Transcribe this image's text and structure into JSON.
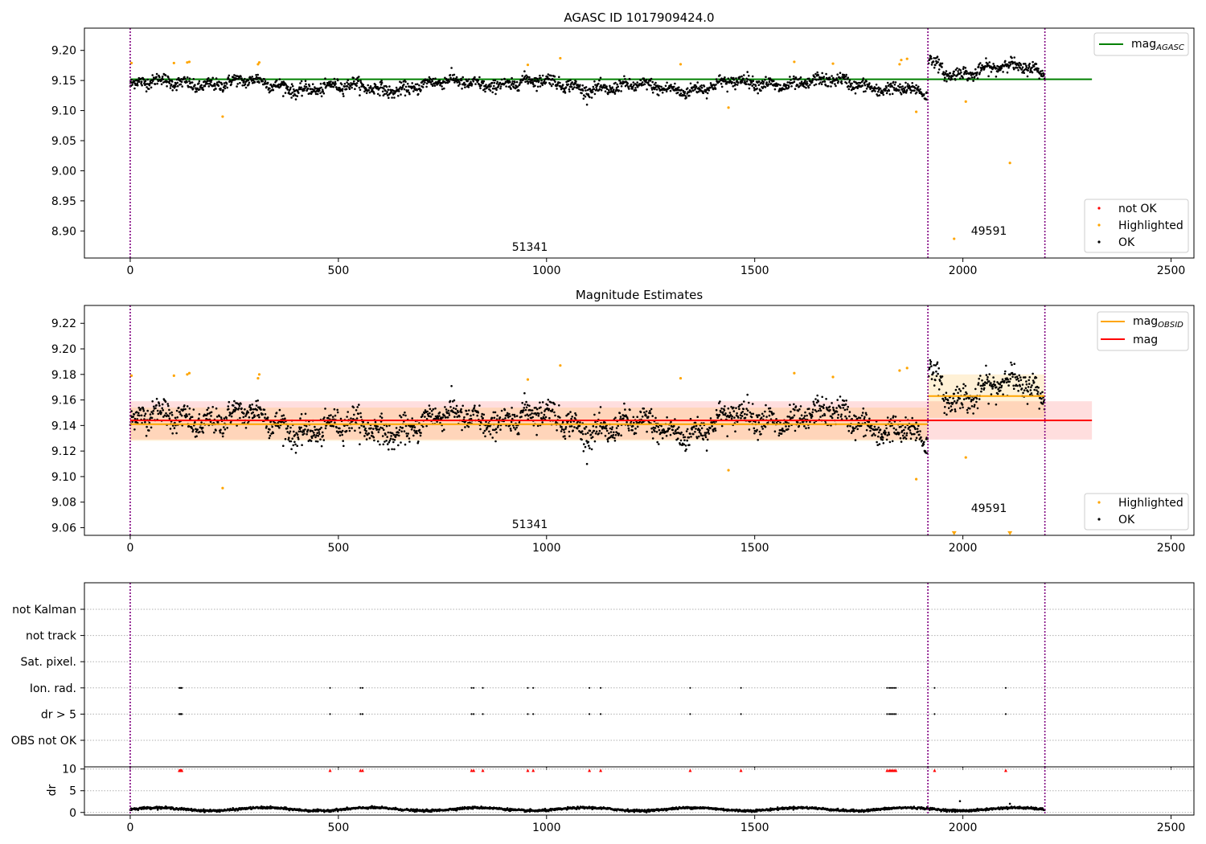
{
  "chart_data": [
    {
      "type": "scatter",
      "title": "AGASC ID 1017909424.0",
      "xlabel": "",
      "ylabel": "",
      "xlim": [
        -110,
        2555
      ],
      "ylim": [
        8.855,
        9.237
      ],
      "xticks": [
        0,
        500,
        1000,
        1500,
        2000,
        2500
      ],
      "yticks": [
        8.9,
        8.95,
        9.0,
        9.05,
        9.1,
        9.15,
        9.2
      ],
      "ytick_labels": [
        "8.90",
        "8.95",
        "9.00",
        "9.05",
        "9.10",
        "9.15",
        "9.20"
      ],
      "grid": false,
      "legend_upper": {
        "position": "upper right",
        "entries": [
          {
            "label": "mag",
            "subscript": "AGASC",
            "color": "#008000",
            "kind": "line"
          }
        ]
      },
      "legend_lower": {
        "position": "lower right",
        "entries": [
          {
            "label": "not OK",
            "color": "#ff0000",
            "kind": "marker"
          },
          {
            "label": "Highlighted",
            "color": "#ffa500",
            "kind": "marker"
          },
          {
            "label": "OK",
            "color": "#000000",
            "kind": "marker"
          }
        ]
      },
      "obsid_labels": [
        {
          "text": "51341",
          "x": 956,
          "y": 8.874
        },
        {
          "text": "49591",
          "x": 2055,
          "y": 8.895
        }
      ],
      "vlines": [
        0,
        1916,
        2197
      ],
      "mag_agasc": {
        "value": 9.152,
        "x": [
          0,
          2310
        ]
      },
      "segments": [
        {
          "x0": 0,
          "x1": 1916,
          "center": 9.142,
          "amp": 0.011,
          "noise": 0.0095,
          "rise_end": 0.017
        },
        {
          "x0": 1918,
          "x1": 2197,
          "center": 9.163,
          "amp": 0.013,
          "noise": 0.0095,
          "rise_end": 0.0
        }
      ],
      "highlighted_points": [
        {
          "x": 3,
          "y": 9.179
        },
        {
          "x": 105,
          "y": 9.179
        },
        {
          "x": 137,
          "y": 9.18
        },
        {
          "x": 142,
          "y": 9.181
        },
        {
          "x": 222,
          "y": 9.09
        },
        {
          "x": 307,
          "y": 9.177
        },
        {
          "x": 310,
          "y": 9.18
        },
        {
          "x": 955,
          "y": 9.176
        },
        {
          "x": 1033,
          "y": 9.187
        },
        {
          "x": 1322,
          "y": 9.177
        },
        {
          "x": 1437,
          "y": 9.105
        },
        {
          "x": 1595,
          "y": 9.181
        },
        {
          "x": 1688,
          "y": 9.178
        },
        {
          "x": 1848,
          "y": 9.177
        },
        {
          "x": 1852,
          "y": 9.184
        },
        {
          "x": 1866,
          "y": 9.186
        },
        {
          "x": 1888,
          "y": 9.098
        },
        {
          "x": 1979,
          "y": 8.887
        },
        {
          "x": 2007,
          "y": 9.115
        },
        {
          "x": 2113,
          "y": 9.013
        }
      ],
      "not_ok_points": []
    },
    {
      "type": "scatter",
      "title": "Magnitude Estimates",
      "xlabel": "",
      "ylabel": "",
      "xlim": [
        -110,
        2555
      ],
      "ylim": [
        9.054,
        9.234
      ],
      "xticks": [
        0,
        500,
        1000,
        1500,
        2000,
        2500
      ],
      "yticks": [
        9.06,
        9.08,
        9.1,
        9.12,
        9.14,
        9.16,
        9.18,
        9.2,
        9.22
      ],
      "ytick_labels": [
        "9.06",
        "9.08",
        "9.10",
        "9.12",
        "9.14",
        "9.16",
        "9.18",
        "9.20",
        "9.22"
      ],
      "grid": false,
      "legend_upper": {
        "position": "upper right",
        "entries": [
          {
            "label": "mag",
            "subscript": "OBSID",
            "color": "#ffa500",
            "kind": "line"
          },
          {
            "label": "mag",
            "subscript": "",
            "color": "#ff0000",
            "kind": "line"
          }
        ]
      },
      "legend_lower": {
        "position": "lower right",
        "entries": [
          {
            "label": "Highlighted",
            "color": "#ffa500",
            "kind": "marker"
          },
          {
            "label": "OK",
            "color": "#000000",
            "kind": "marker"
          }
        ]
      },
      "obsid_labels": [
        {
          "text": "51341",
          "x": 956,
          "y": 9.0605
        },
        {
          "text": "49591",
          "x": 2055,
          "y": 9.0725
        }
      ],
      "vlines": [
        0,
        1916,
        2197
      ],
      "mag_line": {
        "value": 9.144,
        "x": [
          0,
          2310
        ],
        "band": [
          9.129,
          9.159
        ],
        "color": "#ff0000"
      },
      "mag_obsid": [
        {
          "x": [
            0,
            1916
          ],
          "value": 9.141,
          "band": [
            9.128,
            9.154
          ]
        },
        {
          "x": [
            1916,
            2197
          ],
          "value": 9.163,
          "band": [
            9.146,
            9.18
          ]
        }
      ],
      "segments": [
        {
          "x0": 0,
          "x1": 1916,
          "center": 9.142,
          "amp": 0.011,
          "noise": 0.0095,
          "rise_end": 0.017
        },
        {
          "x0": 1918,
          "x1": 2197,
          "center": 9.163,
          "amp": 0.013,
          "noise": 0.0095,
          "rise_end": 0.0
        }
      ],
      "highlighted_points": [
        {
          "x": 3,
          "y": 9.179
        },
        {
          "x": 105,
          "y": 9.179
        },
        {
          "x": 137,
          "y": 9.18
        },
        {
          "x": 142,
          "y": 9.181
        },
        {
          "x": 222,
          "y": 9.091
        },
        {
          "x": 307,
          "y": 9.177
        },
        {
          "x": 310,
          "y": 9.18
        },
        {
          "x": 955,
          "y": 9.176
        },
        {
          "x": 1033,
          "y": 9.187
        },
        {
          "x": 1322,
          "y": 9.177
        },
        {
          "x": 1437,
          "y": 9.105
        },
        {
          "x": 1595,
          "y": 9.181
        },
        {
          "x": 1688,
          "y": 9.178
        },
        {
          "x": 1848,
          "y": 9.183
        },
        {
          "x": 1866,
          "y": 9.185
        },
        {
          "x": 1888,
          "y": 9.098
        },
        {
          "x": 2007,
          "y": 9.115
        }
      ],
      "off_scale_markers": [
        {
          "x": 1979,
          "y": 9.056
        },
        {
          "x": 2113,
          "y": 9.056
        }
      ]
    },
    {
      "type": "scatter",
      "title": "",
      "xlabel": "",
      "ylabel": "",
      "xlim": [
        -110,
        2555
      ],
      "xticks": [
        0,
        500,
        1000,
        1500,
        2000,
        2500
      ],
      "categories": [
        "not Kalman",
        "not track",
        "Sat. pixel.",
        "Ion. rad.",
        "dr > 5",
        "OBS not OK"
      ],
      "grid": true,
      "vlines": [
        0,
        1916,
        2197
      ],
      "flags": {
        "Ion. rad.": [
          118,
          120,
          122,
          124,
          480,
          553,
          558,
          820,
          825,
          847,
          955,
          968,
          1103,
          1130,
          1345,
          1467,
          1818,
          1823,
          1827,
          1831,
          1835,
          1839,
          1932,
          2103
        ],
        "dr > 5": [
          118,
          120,
          122,
          124,
          480,
          553,
          558,
          820,
          825,
          847,
          955,
          968,
          1103,
          1130,
          1345,
          1467,
          1818,
          1823,
          1827,
          1831,
          1835,
          1839,
          1932,
          2103
        ]
      }
    },
    {
      "type": "scatter",
      "title": "",
      "xlabel": "",
      "ylabel": "dr",
      "xlim": [
        -110,
        2555
      ],
      "ylim": [
        -0.6,
        10.5
      ],
      "xticks": [
        0,
        500,
        1000,
        1500,
        2000,
        2500
      ],
      "yticks": [
        0,
        5,
        10
      ],
      "ytick_labels": [
        "0",
        "5",
        "10"
      ],
      "grid": true,
      "vlines": [
        0,
        1916,
        2197
      ],
      "dr_baseline": {
        "x0": 0,
        "x1": 2197,
        "mean": 0.75,
        "amp": 0.35,
        "noise": 0.25
      },
      "dr_outliers": [
        {
          "x": 1993,
          "y": 2.6
        },
        {
          "x": 2113,
          "y": 2.0
        }
      ],
      "clipped_markers_y": 9.7,
      "clipped_markers_color": "#ff0000",
      "clipped_markers_x": [
        118,
        120,
        122,
        124,
        480,
        553,
        558,
        820,
        825,
        847,
        955,
        968,
        1103,
        1130,
        1345,
        1467,
        1818,
        1823,
        1827,
        1831,
        1835,
        1839,
        1932,
        2103
      ]
    }
  ]
}
